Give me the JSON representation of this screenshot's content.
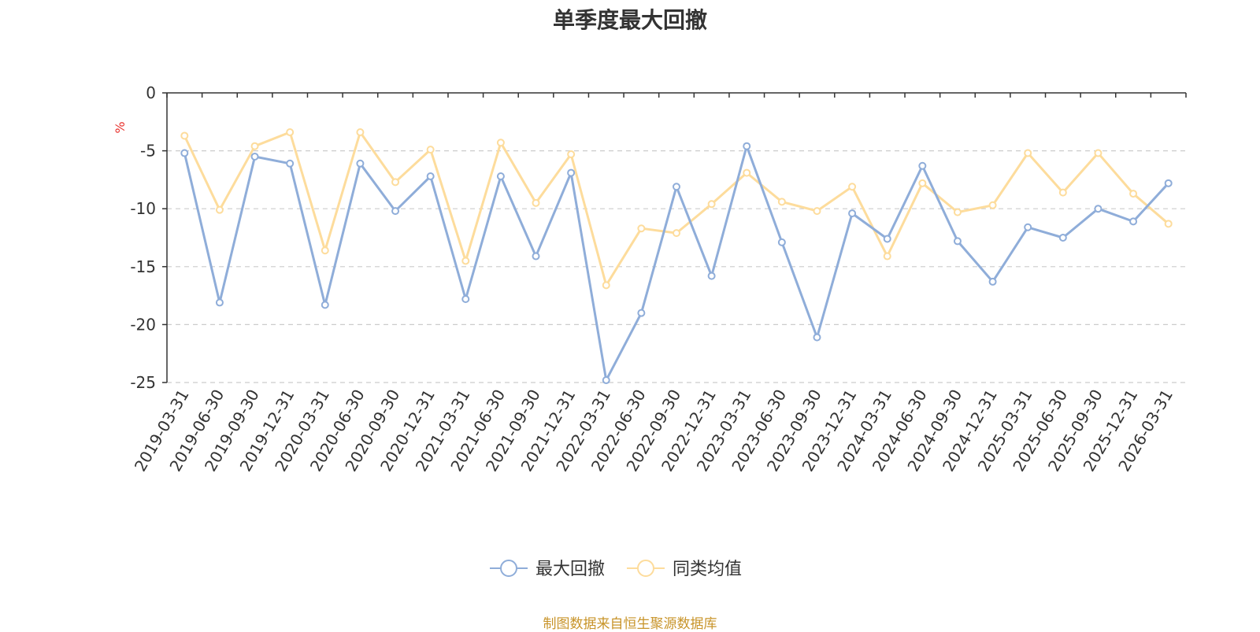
{
  "title": "单季度最大回撤",
  "source": "制图数据来自恒生聚源数据库",
  "chart_data": {
    "type": "line",
    "title": "单季度最大回撤",
    "ylabel": "%",
    "xlabel": "",
    "ylim": [
      -25,
      0
    ],
    "yticks": [
      "0",
      "-5",
      "-10",
      "-15",
      "-20",
      "-25"
    ],
    "grid": true,
    "legend_position": "bottom-center",
    "categories": [
      "2019-03-31",
      "2019-06-30",
      "2019-09-30",
      "2019-12-31",
      "2020-03-31",
      "2020-06-30",
      "2020-09-30",
      "2020-12-31",
      "2021-03-31",
      "2021-06-30",
      "2021-09-30",
      "2021-12-31",
      "2022-03-31",
      "2022-06-30",
      "2022-09-30",
      "2022-12-31",
      "2023-03-31",
      "2023-06-30",
      "2023-09-30",
      "2023-12-31",
      "2024-03-31",
      "2024-06-30",
      "2024-09-30",
      "2024-12-31",
      "2025-03-31",
      "2025-06-30",
      "2025-09-30",
      "2025-12-31",
      "2026-03-31"
    ],
    "series": [
      {
        "name": "最大回撤",
        "color": "#8fadd9",
        "values": [
          -5.2,
          -18.1,
          -5.5,
          -6.1,
          -18.3,
          -6.1,
          -10.2,
          -7.2,
          -17.8,
          -7.2,
          -14.1,
          -6.9,
          -24.8,
          -19.0,
          -8.1,
          -15.8,
          -4.6,
          -12.9,
          -21.1,
          -10.4,
          -12.6,
          -6.3,
          -12.8,
          -16.3,
          -11.6,
          -12.5,
          -10.0,
          -11.1,
          -7.8
        ]
      },
      {
        "name": "同类均值",
        "color": "#fddc9c",
        "values": [
          -3.7,
          -10.1,
          -4.6,
          -3.4,
          -13.6,
          -3.4,
          -7.7,
          -4.9,
          -14.5,
          -4.3,
          -9.5,
          -5.3,
          -16.6,
          -11.7,
          -12.1,
          -9.6,
          -6.9,
          -9.4,
          -10.2,
          -8.1,
          -14.1,
          -7.8,
          -10.3,
          -9.7,
          -5.2,
          -8.6,
          -5.2,
          -8.7,
          -11.3
        ]
      }
    ]
  }
}
